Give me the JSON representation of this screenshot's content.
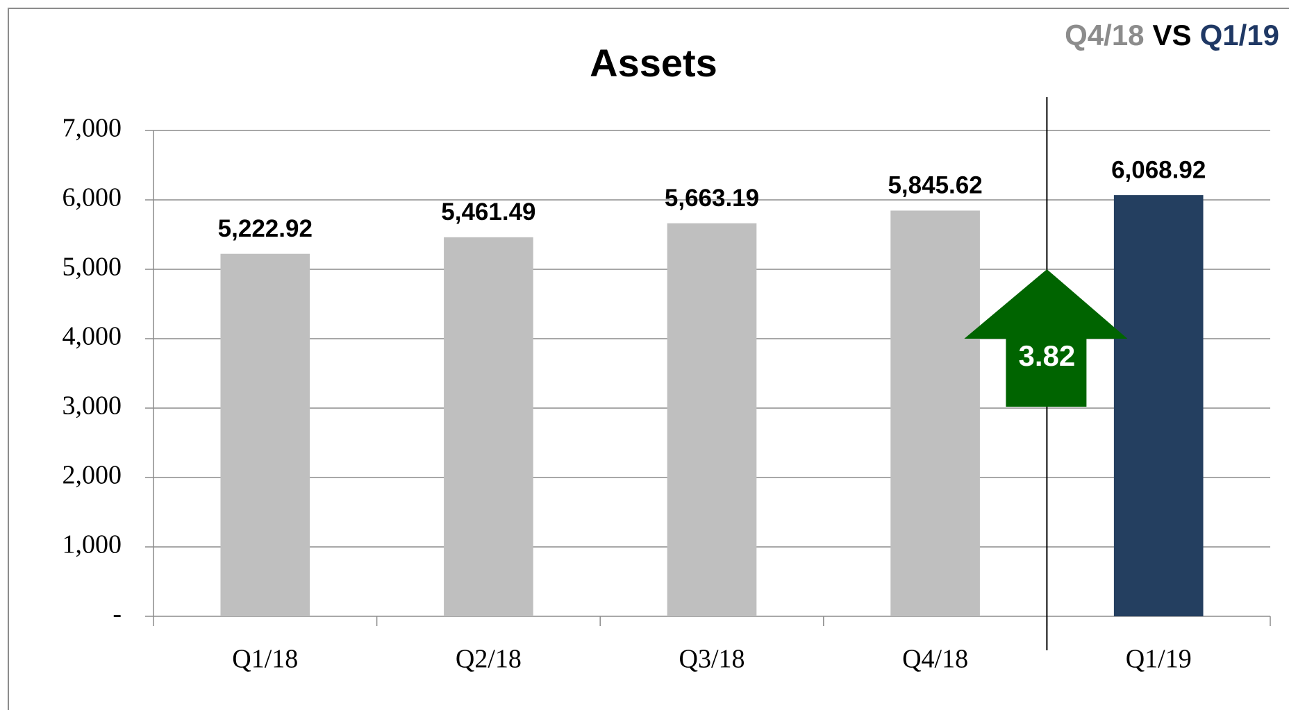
{
  "chart_data": {
    "type": "bar",
    "title": "Assets",
    "comparison": [
      "Q4/18",
      "VS",
      "Q1/19"
    ],
    "comparison_colors": [
      "#8c8c8c",
      "#000000",
      "#1f3864"
    ],
    "categories": [
      "Q1/18",
      "Q2/18",
      "Q3/18",
      "Q4/18",
      "Q1/19"
    ],
    "values": [
      5222.92,
      5461.49,
      5663.19,
      5845.62,
      6068.92
    ],
    "value_labels": [
      "5,222.92",
      "5,461.49",
      "5,663.19",
      "5,845.62",
      "6,068.92"
    ],
    "colors": [
      "#bfbfbf",
      "#bfbfbf",
      "#bfbfbf",
      "#bfbfbf",
      "#243f60"
    ],
    "ylim": [
      0,
      7000
    ],
    "yticks": [
      {
        "value": 0,
        "label": "-"
      },
      {
        "value": 1000,
        "label": "1,000"
      },
      {
        "value": 2000,
        "label": "2,000"
      },
      {
        "value": 3000,
        "label": "3,000"
      },
      {
        "value": 4000,
        "label": "4,000"
      },
      {
        "value": 5000,
        "label": "5,000"
      },
      {
        "value": 6000,
        "label": "6,000"
      },
      {
        "value": 7000,
        "label": "7,000"
      }
    ],
    "grid": true,
    "change": 3.82,
    "change_color": "#006400"
  }
}
